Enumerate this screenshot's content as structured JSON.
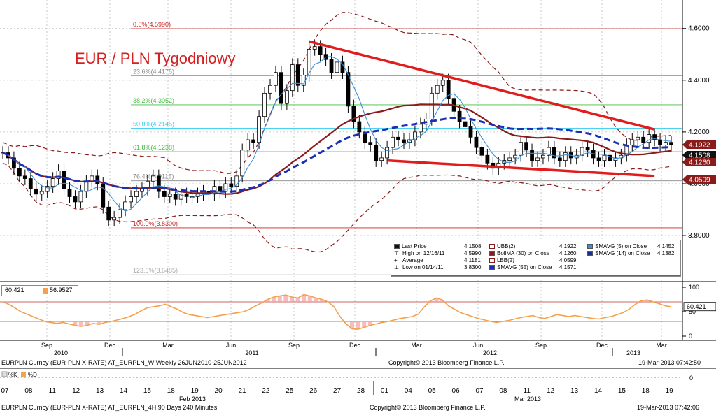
{
  "title": "EUR / PLN Tygodniowy",
  "colors": {
    "title": "#d42020",
    "candle_body": "#000000",
    "sma5": "#3a8fd6",
    "sma14_dashed": "#1a2fb8",
    "bollma": "#8b1a1a",
    "bollinger_band": "#8b1a1a",
    "trendline": "#e01c1c",
    "fib_red": "#cc2222",
    "fib_green": "#44bb44",
    "fib_cyan": "#33ccee",
    "fib_gray": "#888888",
    "osc_orange": "#f5a04a",
    "osc_fill": "#f4a0a0"
  },
  "chart_data": {
    "type": "candlestick",
    "series_name": "EURPLN Curncy",
    "y_axis": {
      "ticks": [
        "4.6000",
        "4.4000",
        "4.2000",
        "4.0000",
        "3.8000"
      ],
      "ylim": [
        3.63,
        4.71
      ]
    },
    "price_labels": [
      {
        "value": "4.1922",
        "color": "#8b1a1a"
      },
      {
        "value": "4.1508",
        "color": "#111111"
      },
      {
        "value": "4.1260",
        "color": "#8b1a1a"
      },
      {
        "value": "4.0599",
        "color": "#8b1a1a"
      }
    ],
    "fibonacci_levels": [
      {
        "label": "0.0%(4.5990)",
        "value": 4.599,
        "color": "#cc2222"
      },
      {
        "label": "23.6%(4.4175)",
        "value": 4.4175,
        "color": "#888888"
      },
      {
        "label": "38.2%(4.3052)",
        "value": 4.3052,
        "color": "#44bb44"
      },
      {
        "label": "50.0%(4.2145)",
        "value": 4.2145,
        "color": "#33ccee"
      },
      {
        "label": "61.8%(4.1238)",
        "value": 4.1238,
        "color": "#44bb44"
      },
      {
        "label": "76.4%(4.0115)",
        "value": 4.0115,
        "color": "#888888"
      },
      {
        "label": "100.0%(3.8300)",
        "value": 3.83,
        "color": "#cc2222"
      },
      {
        "label": "123.6%(3.6485)",
        "value": 3.6485,
        "color": "#aaaaaa"
      }
    ],
    "x_axis_weekly": {
      "ticks": [
        "Sep",
        "Dec",
        "Mar",
        "Jun",
        "Sep",
        "Dec",
        "Mar",
        "Jun",
        "Sep",
        "Dec",
        "Mar"
      ],
      "years": [
        "2010",
        "2011",
        "2012",
        "2013"
      ]
    },
    "closes": [
      4.12,
      4.1,
      4.06,
      4.03,
      4.02,
      3.98,
      3.96,
      3.97,
      3.99,
      4.02,
      4.05,
      3.98,
      3.95,
      3.93,
      3.97,
      4.01,
      4.03,
      4.0,
      3.91,
      3.86,
      3.87,
      3.9,
      3.93,
      3.95,
      3.97,
      3.98,
      4.01,
      4.03,
      3.97,
      3.95,
      3.96,
      3.94,
      3.96,
      3.95,
      3.95,
      3.96,
      3.97,
      3.96,
      3.99,
      3.97,
      4.0,
      3.99,
      4.03,
      4.13,
      4.17,
      4.16,
      4.26,
      4.35,
      4.38,
      4.43,
      4.31,
      4.36,
      4.46,
      4.38,
      4.42,
      4.52,
      4.53,
      4.5,
      4.48,
      4.43,
      4.47,
      4.43,
      4.3,
      4.24,
      4.2,
      4.16,
      4.15,
      4.09,
      4.1,
      4.14,
      4.18,
      4.17,
      4.16,
      4.17,
      4.2,
      4.23,
      4.25,
      4.35,
      4.38,
      4.4,
      4.33,
      4.28,
      4.24,
      4.22,
      4.18,
      4.14,
      4.11,
      4.08,
      4.06,
      4.08,
      4.09,
      4.1,
      4.11,
      4.16,
      4.13,
      4.09,
      4.1,
      4.11,
      4.14,
      4.1,
      4.09,
      4.12,
      4.1,
      4.11,
      4.14,
      4.13,
      4.1,
      4.09,
      4.11,
      4.09,
      4.1,
      4.11,
      4.15,
      4.17,
      4.18,
      4.16,
      4.19,
      4.17,
      4.15,
      4.16,
      4.15
    ]
  },
  "legend": {
    "col1": [
      {
        "label": "Last Price",
        "value": "4.1508"
      },
      {
        "label": "High on 12/16/11",
        "value": "4.5990"
      },
      {
        "label": "Average",
        "value": "4.1181"
      },
      {
        "label": "Low on 01/14/11",
        "value": "3.8300"
      }
    ],
    "col2": [
      {
        "label": "UBB(2)",
        "value": "4.1922"
      },
      {
        "label": "BollMA (30) on Close",
        "value": "4.1260"
      },
      {
        "label": "LBB(2)",
        "value": "4.0599"
      },
      {
        "label": "SMAVG (55) on Close",
        "value": "4.1571"
      }
    ],
    "col3": [
      {
        "label": "SMAVG (5) on Close",
        "value": "4.1452"
      },
      {
        "label": "SMAVG (14) on Close",
        "value": "4.1382"
      }
    ]
  },
  "oscillator": {
    "legend_a": "60.421",
    "legend_b": "56.9527",
    "ticks": [
      "100",
      "50",
      "0"
    ],
    "last_label": "60.421",
    "values": [
      70,
      65,
      58,
      50,
      45,
      40,
      35,
      30,
      28,
      26,
      28,
      25,
      22,
      20,
      22,
      26,
      24,
      28,
      30,
      33,
      36,
      40,
      45,
      52,
      58,
      60,
      62,
      65,
      60,
      55,
      48,
      44,
      42,
      40,
      38,
      40,
      42,
      44,
      46,
      48,
      50,
      55,
      62,
      68,
      75,
      80,
      82,
      84,
      80,
      78,
      85,
      82,
      78,
      75,
      70,
      60,
      40,
      25,
      15,
      14,
      18,
      22,
      25,
      28,
      30,
      33,
      36,
      38,
      40,
      45,
      60,
      72,
      78,
      74,
      62,
      55,
      48,
      44,
      40,
      36,
      33,
      30,
      28,
      30,
      32,
      35,
      38,
      40,
      42,
      38,
      36,
      40,
      44,
      42,
      40,
      42,
      40,
      38,
      36,
      35,
      38,
      40,
      44,
      48,
      55,
      65,
      72,
      74,
      70,
      66,
      62,
      60
    ]
  },
  "footer": {
    "weekly_line": "EURPLN Curncy (EUR-PLN X-RATE) AT_EURPLN_W  Weekly 26JUN2010-25JUN2012",
    "copyright1": "Copyright© 2013 Bloomberg Finance L.P.",
    "stamp1": "19-Mar-2013 07:42:50",
    "fourhour_line": "EURPLN Curncy (EUR-PLN X-RATE) AT_EURPLN_4H  90 Days 240 Minutes",
    "copyright2": "Copyright© 2013 Bloomberg Finance L.P.",
    "stamp2": "19-Mar-2013 07:42:06",
    "days_feb": [
      "07",
      "08",
      "11",
      "12",
      "13",
      "14",
      "15",
      "18",
      "19",
      "20",
      "21",
      "22",
      "25",
      "26",
      "27",
      "28"
    ],
    "days_mar": [
      "01",
      "04",
      "05",
      "06",
      "07",
      "08",
      "11",
      "12",
      "13",
      "14",
      "15",
      "18",
      "19"
    ],
    "month_feb": "Feb 2013",
    "month_mar": "Mar 2013",
    "mini_k": "%K",
    "mini_d": "%D",
    "mini_zero": "0"
  }
}
